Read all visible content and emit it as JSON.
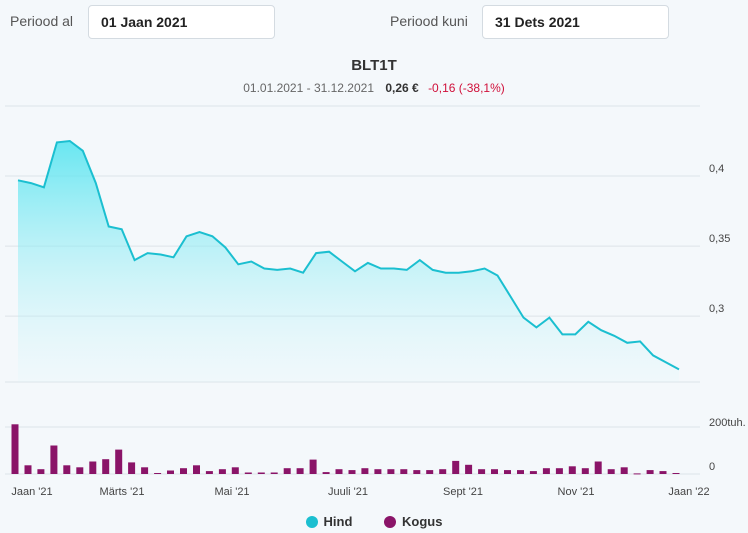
{
  "filters": {
    "from_label": "Periood al",
    "from_value": "01 Jaan 2021",
    "to_label": "Periood kuni",
    "to_value": "31 Dets 2021"
  },
  "header": {
    "title": "BLT1T",
    "period": "01.01.2021 - 31.12.2021",
    "price": "0,26 €",
    "change": "-0,16 (-38,1%)"
  },
  "colors": {
    "price_line": "#1bbfd0",
    "volume_bar": "#8a1468",
    "grid": "#dde3e8"
  },
  "legend": [
    {
      "name": "Hind",
      "color": "#1bbfd0"
    },
    {
      "name": "Kogus",
      "color": "#8a1468"
    }
  ],
  "chart_data": {
    "type": "line",
    "x_ticks": [
      "Jaan '21",
      "Märts '21",
      "Mai '21",
      "Juuli '21",
      "Sept '21",
      "Nov '21",
      "Jaan '22"
    ],
    "price_axis": {
      "ticks": [
        0.3,
        0.35,
        0.4
      ],
      "tick_labels": [
        "0,3",
        "0,35",
        "0,4"
      ],
      "range": [
        0.253,
        0.45
      ]
    },
    "volume_axis": {
      "ticks": [
        0,
        200000
      ],
      "tick_labels": [
        "0",
        "200tuh."
      ],
      "range": [
        0,
        400000
      ]
    },
    "series": [
      {
        "name": "Hind",
        "type": "area",
        "values": [
          0.397,
          0.395,
          0.392,
          0.424,
          0.425,
          0.418,
          0.395,
          0.364,
          0.362,
          0.34,
          0.345,
          0.344,
          0.342,
          0.357,
          0.36,
          0.357,
          0.349,
          0.337,
          0.339,
          0.334,
          0.333,
          0.334,
          0.331,
          0.345,
          0.346,
          0.339,
          0.332,
          0.338,
          0.334,
          0.334,
          0.333,
          0.34,
          0.333,
          0.331,
          0.331,
          0.332,
          0.334,
          0.329,
          0.314,
          0.299,
          0.292,
          0.299,
          0.287,
          0.287,
          0.296,
          0.29,
          0.286,
          0.281,
          0.282,
          0.272,
          0.267,
          0.262
        ]
      },
      {
        "name": "Kogus",
        "type": "bar",
        "values": [
          258000,
          45000,
          25000,
          148000,
          45000,
          35000,
          65000,
          77000,
          127000,
          60000,
          35000,
          5000,
          18000,
          30000,
          45000,
          15000,
          25000,
          35000,
          8000,
          8000,
          8000,
          30000,
          30000,
          75000,
          10000,
          25000,
          20000,
          30000,
          25000,
          25000,
          25000,
          20000,
          20000,
          25000,
          68000,
          48000,
          25000,
          25000,
          20000,
          20000,
          15000,
          30000,
          30000,
          40000,
          30000,
          65000,
          25000,
          35000,
          3000,
          20000,
          15000,
          5000
        ]
      }
    ]
  }
}
